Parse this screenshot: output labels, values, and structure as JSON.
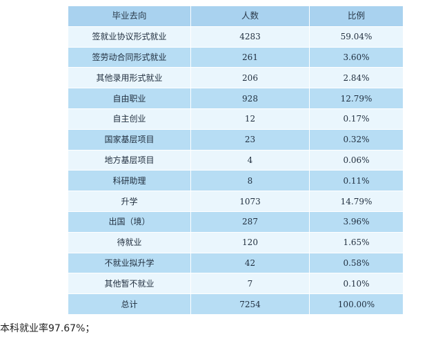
{
  "table": {
    "headers": [
      "毕业去向",
      "人数",
      "比例"
    ],
    "rows": [
      [
        "签就业协议形式就业",
        "4283",
        "59.04%"
      ],
      [
        "签劳动合同形式就业",
        "261",
        "3.60%"
      ],
      [
        "其他录用形式就业",
        "206",
        "2.84%"
      ],
      [
        "自由职业",
        "928",
        "12.79%"
      ],
      [
        "自主创业",
        "12",
        "0.17%"
      ],
      [
        "国家基层项目",
        "23",
        "0.32%"
      ],
      [
        "地方基层项目",
        "4",
        "0.06%"
      ],
      [
        "科研助理",
        "8",
        "0.11%"
      ],
      [
        "升学",
        "1073",
        "14.79%"
      ],
      [
        "出国（境）",
        "287",
        "3.96%"
      ],
      [
        "待就业",
        "120",
        "1.65%"
      ],
      [
        "不就业拟升学",
        "42",
        "0.58%"
      ],
      [
        "其他暂不就业",
        "7",
        "0.10%"
      ],
      [
        "总计",
        "7254",
        "100.00%"
      ]
    ]
  },
  "note": "本科就业率97.67%；",
  "colors": {
    "header_bg": "#a9d2ef",
    "row_light": "#eaf6fd",
    "row_dark": "#b7ddf4"
  }
}
